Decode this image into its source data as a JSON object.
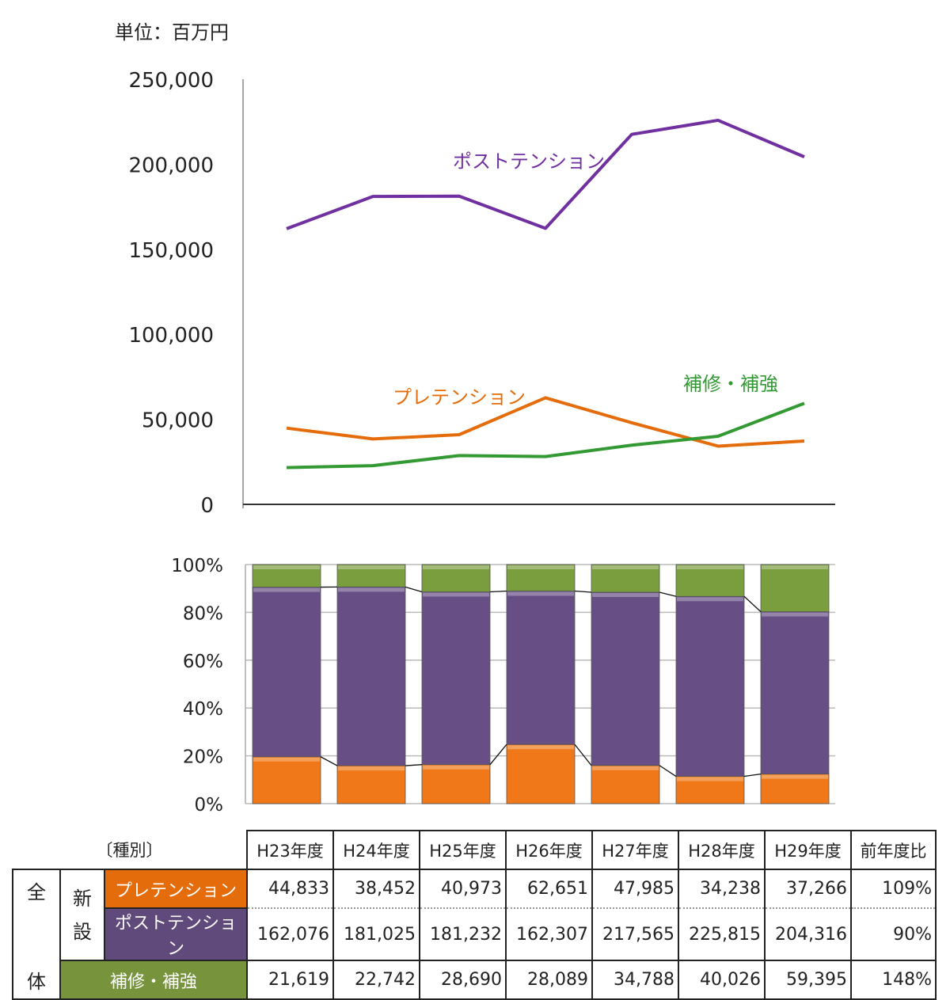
{
  "chart_data": [
    {
      "type": "line",
      "unit_label": "単位：百万円",
      "ylim": [
        0,
        250000
      ],
      "yticks": [
        "250,000",
        "200,000",
        "150,000",
        "100,000",
        "50,000",
        "0"
      ],
      "yticks_values": [
        250000,
        200000,
        150000,
        100000,
        50000,
        0
      ],
      "categories": [
        "H23年度",
        "H24年度",
        "H25年度",
        "H26年度",
        "H27年度",
        "H28年度",
        "H29年度"
      ],
      "series": [
        {
          "name": "ポストテンション",
          "color": "#7030a0",
          "values": [
            162076,
            181025,
            181232,
            162307,
            217565,
            225815,
            204316
          ]
        },
        {
          "name": "プレテンション",
          "color": "#e46c0a",
          "values": [
            44833,
            38452,
            40973,
            62651,
            47985,
            34238,
            37266
          ]
        },
        {
          "name": "補修・補強",
          "color": "#339933",
          "values": [
            21619,
            22742,
            28690,
            28089,
            34788,
            40026,
            59395
          ]
        }
      ]
    },
    {
      "type": "bar",
      "stacked": "percent",
      "ylim": [
        0,
        100
      ],
      "yticks": [
        "100%",
        "80%",
        "60%",
        "40%",
        "20%",
        "0%"
      ],
      "yticks_values": [
        100,
        80,
        60,
        40,
        20,
        0
      ],
      "series_colors": [
        "#f07818",
        "#674f86",
        "#7a9e3e"
      ]
    }
  ],
  "table": {
    "category_header": "〔種別〕",
    "years": [
      "H23年度",
      "H24年度",
      "H25年度",
      "H26年度",
      "H27年度",
      "H28年度",
      "H29年度"
    ],
    "ratio_header": "前年度比",
    "side_all": [
      "全",
      "体"
    ],
    "side_new": [
      "新",
      "設"
    ],
    "rows": [
      {
        "label": "プレテンション",
        "color": "#e46c0a",
        "values": [
          "44,833",
          "38,452",
          "40,973",
          "62,651",
          "47,985",
          "34,238",
          "37,266"
        ],
        "ratio": "109%"
      },
      {
        "label": "ポストテンション",
        "color": "#604a7b",
        "values": [
          "162,076",
          "181,025",
          "181,232",
          "162,307",
          "217,565",
          "225,815",
          "204,316"
        ],
        "ratio": "90%"
      },
      {
        "label": "補修・補強",
        "color": "#77933c",
        "values": [
          "21,619",
          "22,742",
          "28,690",
          "28,089",
          "34,788",
          "40,026",
          "59,395"
        ],
        "ratio": "148%"
      }
    ]
  }
}
